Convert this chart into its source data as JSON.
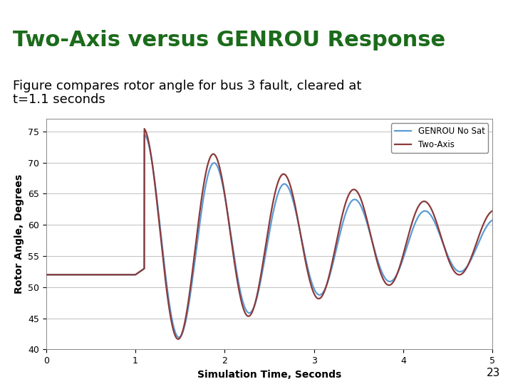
{
  "title": "Two-Axis versus GENROU Response",
  "subtitle_line1": "Figure compares rotor angle for bus 3 fault, cleared at",
  "subtitle_line2": "t=1.1 seconds",
  "xlabel": "Simulation Time, Seconds",
  "ylabel": "Rotor Angle, Degrees",
  "xlim": [
    0,
    5
  ],
  "ylim": [
    40,
    77
  ],
  "yticks": [
    40,
    45,
    50,
    55,
    60,
    65,
    70,
    75
  ],
  "xticks": [
    0,
    1,
    2,
    3,
    4,
    5
  ],
  "title_color": "#1B6B1B",
  "title_fontsize": 22,
  "subtitle_fontsize": 13,
  "axis_label_fontsize": 10,
  "tick_fontsize": 9,
  "background_color": "#FFFFFF",
  "divider_color": "#1F1F8C",
  "plot_bg_color": "#FFFFFF",
  "genrou_color": "#5B9BD5",
  "twoaxis_color": "#8B3A3A",
  "legend_labels": [
    "GENROU No Sat",
    "Two-Axis"
  ],
  "number_label": "23",
  "line_width": 1.6
}
